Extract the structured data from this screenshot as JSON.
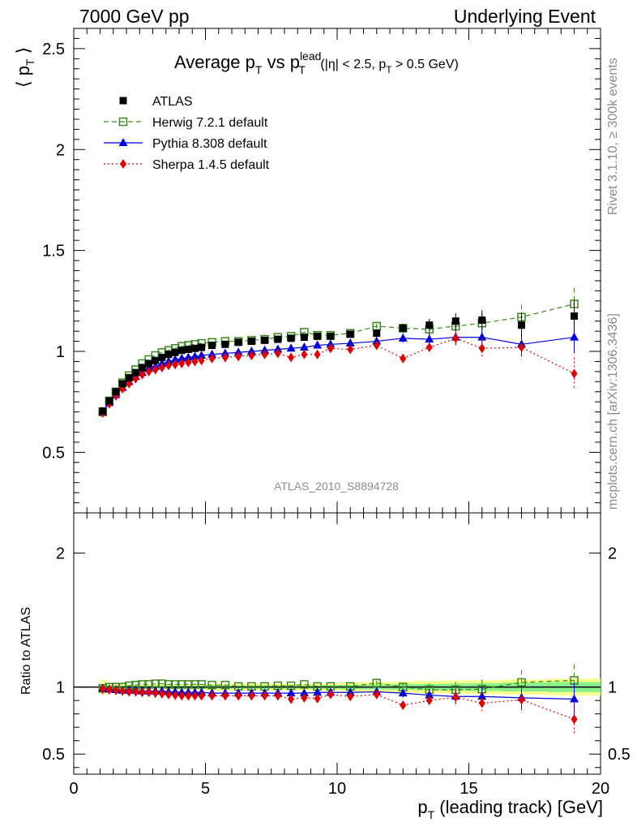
{
  "header": {
    "left": "7000 GeV pp",
    "right": "Underlying Event"
  },
  "title": {
    "main": "Average p",
    "sub1": "T",
    "vs": " vs p",
    "sup": "lead",
    "sub2": "T",
    "cut1": " (|η| < 2.5, p",
    "cut_sub": "T",
    "cut2": " > 0.5 GeV)"
  },
  "side_labels": {
    "rivet": "Rivet 3.1.10, ≥ 300k events",
    "mcplots": "mcplots.cern.ch [arXiv:1306.3436]"
  },
  "analysis_label": "ATLAS_2010_S8894728",
  "axes": {
    "ylabel_main": "⟨ p",
    "ylabel_main_sub": "T",
    "ylabel_main_end": " ⟩",
    "ylabel_ratio": "Ratio to ATLAS",
    "xlabel": "p",
    "xlabel_sub": "T",
    "xlabel_end": " (leading track) [GeV]"
  },
  "legend": [
    {
      "label": "ATLAS",
      "color": "#000000",
      "marker": "square"
    },
    {
      "label": "Herwig 7.2.1 default",
      "color": "#3a8a1a",
      "marker": "open-square"
    },
    {
      "label": "Pythia 8.308 default",
      "color": "#0000e0",
      "marker": "triangle"
    },
    {
      "label": "Sherpa 1.4.5 default",
      "color": "#e00000",
      "marker": "diamond"
    }
  ],
  "chart_data": {
    "type": "scatter",
    "x_range": [
      0,
      20
    ],
    "main_y_range": [
      0.2,
      2.6
    ],
    "main_y_ticks": [
      "0.5",
      "1",
      "1.5",
      "2",
      "2.5"
    ],
    "ratio_y_range": [
      0.35,
      2.3
    ],
    "ratio_y_ticks": [
      "0.5",
      "1",
      "2"
    ],
    "x_ticks": [
      "0",
      "5",
      "10",
      "15",
      "20"
    ],
    "x": [
      1.1,
      1.35,
      1.6,
      1.85,
      2.1,
      2.35,
      2.6,
      2.85,
      3.1,
      3.35,
      3.6,
      3.85,
      4.1,
      4.35,
      4.6,
      4.85,
      5.25,
      5.75,
      6.25,
      6.75,
      7.25,
      7.75,
      8.25,
      8.75,
      9.25,
      9.75,
      10.5,
      11.5,
      12.5,
      13.5,
      14.5,
      15.5,
      17.0,
      19.0
    ],
    "series": [
      {
        "name": "ATLAS",
        "values": [
          0.705,
          0.755,
          0.8,
          0.84,
          0.87,
          0.895,
          0.92,
          0.94,
          0.955,
          0.97,
          0.985,
          0.995,
          1.005,
          1.01,
          1.015,
          1.02,
          1.03,
          1.035,
          1.045,
          1.05,
          1.055,
          1.06,
          1.065,
          1.07,
          1.075,
          1.075,
          1.085,
          1.09,
          1.115,
          1.13,
          1.15,
          1.155,
          1.13,
          1.175
        ]
      },
      {
        "name": "Herwig 7.2.1 default",
        "values": [
          0.7,
          0.755,
          0.8,
          0.845,
          0.88,
          0.91,
          0.94,
          0.96,
          0.98,
          0.995,
          1.005,
          1.015,
          1.025,
          1.03,
          1.035,
          1.04,
          1.045,
          1.05,
          1.05,
          1.055,
          1.06,
          1.07,
          1.075,
          1.095,
          1.08,
          1.08,
          1.09,
          1.125,
          1.115,
          1.11,
          1.125,
          1.14,
          1.17,
          1.235
        ]
      },
      {
        "name": "Pythia 8.308 default",
        "values": [
          0.7,
          0.745,
          0.785,
          0.82,
          0.85,
          0.875,
          0.895,
          0.915,
          0.925,
          0.94,
          0.95,
          0.96,
          0.965,
          0.97,
          0.975,
          0.98,
          0.985,
          0.99,
          0.995,
          1.0,
          1.005,
          1.01,
          1.015,
          1.02,
          1.03,
          1.035,
          1.04,
          1.05,
          1.065,
          1.06,
          1.07,
          1.07,
          1.035,
          1.07
        ]
      },
      {
        "name": "Sherpa 1.4.5 default",
        "values": [
          0.695,
          0.74,
          0.78,
          0.815,
          0.84,
          0.865,
          0.885,
          0.9,
          0.91,
          0.92,
          0.93,
          0.935,
          0.94,
          0.945,
          0.95,
          0.955,
          0.965,
          0.97,
          0.975,
          0.98,
          0.985,
          0.99,
          0.97,
          0.985,
          0.985,
          1.015,
          1.01,
          1.03,
          0.965,
          1.02,
          1.065,
          1.015,
          1.02,
          0.89
        ]
      }
    ],
    "ratio_series": [
      {
        "name": "Herwig 7.2.1 default",
        "values": [
          0.99,
          1.0,
          1.0,
          1.0,
          1.01,
          1.015,
          1.02,
          1.02,
          1.025,
          1.025,
          1.02,
          1.02,
          1.02,
          1.02,
          1.02,
          1.02,
          1.015,
          1.015,
          1.005,
          1.005,
          1.005,
          1.01,
          1.01,
          1.02,
          1.005,
          1.005,
          1.005,
          1.03,
          1.0,
          0.98,
          0.98,
          0.985,
          1.035,
          1.05
        ]
      },
      {
        "name": "Pythia 8.308 default",
        "values": [
          0.99,
          0.985,
          0.98,
          0.975,
          0.975,
          0.975,
          0.97,
          0.97,
          0.97,
          0.97,
          0.965,
          0.965,
          0.96,
          0.96,
          0.96,
          0.96,
          0.955,
          0.955,
          0.955,
          0.955,
          0.955,
          0.955,
          0.955,
          0.955,
          0.96,
          0.96,
          0.96,
          0.965,
          0.955,
          0.94,
          0.93,
          0.93,
          0.92,
          0.91
        ]
      },
      {
        "name": "Sherpa 1.4.5 default",
        "values": [
          0.985,
          0.98,
          0.975,
          0.97,
          0.965,
          0.965,
          0.96,
          0.96,
          0.955,
          0.95,
          0.945,
          0.94,
          0.935,
          0.935,
          0.935,
          0.935,
          0.935,
          0.935,
          0.935,
          0.935,
          0.935,
          0.935,
          0.91,
          0.92,
          0.915,
          0.945,
          0.93,
          0.945,
          0.865,
          0.9,
          0.925,
          0.88,
          0.905,
          0.76
        ]
      }
    ]
  }
}
